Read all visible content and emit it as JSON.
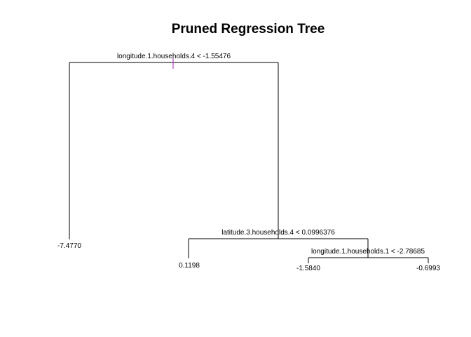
{
  "title": "Pruned Regression Tree",
  "splits": [
    {
      "id": "root",
      "label": "longitude.1.households.4 < -1.55476"
    },
    {
      "id": "s2",
      "label": "latitude.3.households.4 < 0.0996376"
    },
    {
      "id": "s3",
      "label": "longitude.1.households.1 < -2.78685"
    }
  ],
  "leaves": [
    {
      "id": "leaf1",
      "value": "-7.4770"
    },
    {
      "id": "leaf2",
      "value": "0.1198"
    },
    {
      "id": "leaf3",
      "value": "-1.5840"
    },
    {
      "id": "leaf4",
      "value": "-0.6993"
    }
  ],
  "colors": {
    "lines": "#000000",
    "root_marker": "#a020c0"
  }
}
